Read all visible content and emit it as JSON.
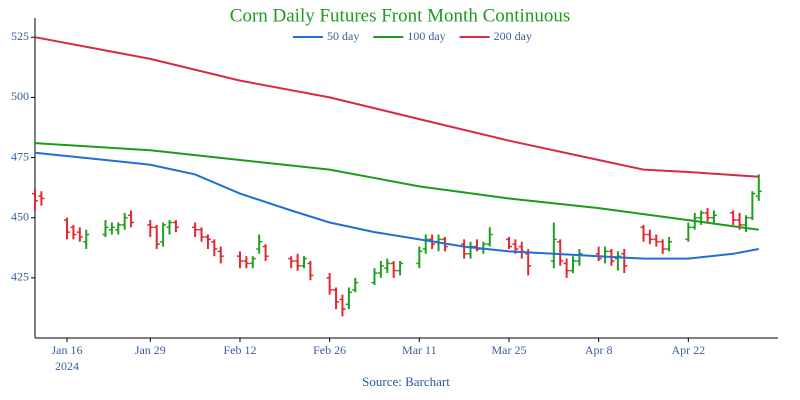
{
  "chart_data": {
    "type": "ohlc",
    "title": "Corn Daily Futures Front Month Continuous",
    "source": "Source: Barchart",
    "legend": "top",
    "xlim": [
      "2024-01-11",
      "2024-05-06"
    ],
    "xticks": [
      {
        "value": "2024-01-16",
        "label": "Jan 16",
        "year": "2024"
      },
      {
        "value": "2024-01-29",
        "label": "Jan 29"
      },
      {
        "value": "2024-02-12",
        "label": "Feb 12"
      },
      {
        "value": "2024-02-26",
        "label": "Feb 26"
      },
      {
        "value": "2024-03-11",
        "label": "Mar 11"
      },
      {
        "value": "2024-03-25",
        "label": "Mar 25"
      },
      {
        "value": "2024-04-08",
        "label": "Apr 8"
      },
      {
        "value": "2024-04-22",
        "label": "Apr 22"
      }
    ],
    "ylim": [
      400,
      533
    ],
    "yticks": [
      425,
      450,
      475,
      500,
      525
    ],
    "up_color": "#1f9e1f",
    "down_color": "#e3262f",
    "ohlc": {
      "x": [
        "2024-01-11",
        "2024-01-12",
        "2024-01-16",
        "2024-01-17",
        "2024-01-18",
        "2024-01-19",
        "2024-01-22",
        "2024-01-23",
        "2024-01-24",
        "2024-01-25",
        "2024-01-26",
        "2024-01-29",
        "2024-01-30",
        "2024-01-31",
        "2024-02-01",
        "2024-02-02",
        "2024-02-05",
        "2024-02-06",
        "2024-02-07",
        "2024-02-08",
        "2024-02-09",
        "2024-02-12",
        "2024-02-13",
        "2024-02-14",
        "2024-02-15",
        "2024-02-16",
        "2024-02-20",
        "2024-02-21",
        "2024-02-22",
        "2024-02-23",
        "2024-02-26",
        "2024-02-27",
        "2024-02-28",
        "2024-02-29",
        "2024-03-01",
        "2024-03-04",
        "2024-03-05",
        "2024-03-06",
        "2024-03-07",
        "2024-03-08",
        "2024-03-11",
        "2024-03-12",
        "2024-03-13",
        "2024-03-14",
        "2024-03-15",
        "2024-03-18",
        "2024-03-19",
        "2024-03-20",
        "2024-03-21",
        "2024-03-22",
        "2024-03-25",
        "2024-03-26",
        "2024-03-27",
        "2024-03-28",
        "2024-04-01",
        "2024-04-02",
        "2024-04-03",
        "2024-04-04",
        "2024-04-05",
        "2024-04-08",
        "2024-04-09",
        "2024-04-10",
        "2024-04-11",
        "2024-04-12",
        "2024-04-15",
        "2024-04-16",
        "2024-04-17",
        "2024-04-18",
        "2024-04-19",
        "2024-04-22",
        "2024-04-23",
        "2024-04-24",
        "2024-04-25",
        "2024-04-26",
        "2024-04-29",
        "2024-04-30",
        "2024-05-01",
        "2024-05-02",
        "2024-05-03"
      ],
      "open": [
        460,
        459,
        449,
        446,
        444,
        440,
        443,
        445,
        445,
        447,
        451,
        447,
        446,
        440,
        446,
        448,
        446,
        445,
        442,
        440,
        436,
        434,
        432,
        431,
        437,
        438,
        433,
        432,
        430,
        431,
        425,
        420,
        416,
        414,
        420,
        423,
        427,
        429,
        431,
        428,
        431,
        437,
        441,
        440,
        441,
        439,
        435,
        438,
        437,
        439,
        441,
        439,
        438,
        435,
        432,
        440,
        431,
        428,
        432,
        435,
        434,
        436,
        433,
        435,
        446,
        443,
        441,
        440,
        437,
        441,
        446,
        450,
        452,
        450,
        452,
        449,
        447,
        450,
        459
      ],
      "high": [
        462,
        461,
        450,
        447,
        446,
        445,
        449,
        448,
        448,
        452,
        453,
        449,
        447,
        448,
        449,
        449,
        448,
        446,
        443,
        441,
        438,
        436,
        434,
        434,
        443,
        439,
        434,
        435,
        434,
        432,
        427,
        421,
        418,
        421,
        425,
        429,
        432,
        433,
        432,
        432,
        438,
        443,
        443,
        443,
        442,
        441,
        440,
        441,
        440,
        446,
        442,
        441,
        440,
        437,
        448,
        441,
        433,
        434,
        437,
        438,
        438,
        437,
        436,
        437,
        447,
        445,
        443,
        441,
        442,
        448,
        452,
        453,
        454,
        453,
        453,
        452,
        451,
        461,
        468
      ],
      "low": [
        453,
        455,
        441,
        441,
        440,
        437,
        442,
        443,
        443,
        445,
        446,
        442,
        437,
        438,
        443,
        444,
        442,
        440,
        437,
        434,
        431,
        429,
        429,
        429,
        435,
        432,
        429,
        428,
        429,
        424,
        418,
        412,
        409,
        412,
        419,
        422,
        425,
        427,
        425,
        426,
        429,
        435,
        437,
        436,
        436,
        433,
        433,
        436,
        435,
        438,
        437,
        435,
        433,
        426,
        429,
        430,
        425,
        427,
        430,
        432,
        431,
        430,
        428,
        427,
        440,
        439,
        438,
        435,
        436,
        440,
        445,
        447,
        448,
        448,
        447,
        445,
        444,
        449,
        457
      ],
      "close": [
        457,
        458,
        444,
        443,
        442,
        443,
        446,
        446,
        447,
        450,
        448,
        446,
        439,
        447,
        448,
        446,
        445,
        442,
        441,
        437,
        434,
        432,
        431,
        433,
        440,
        434,
        432,
        430,
        433,
        426,
        420,
        415,
        412,
        419,
        423,
        427,
        430,
        431,
        428,
        431,
        436,
        441,
        439,
        441,
        438,
        435,
        438,
        437,
        439,
        443,
        438,
        437,
        436,
        430,
        441,
        432,
        428,
        432,
        435,
        433,
        436,
        432,
        434,
        430,
        443,
        441,
        440,
        437,
        440,
        446,
        450,
        452,
        450,
        451,
        449,
        447,
        450,
        460,
        461
      ]
    },
    "series": [
      {
        "name": "50 day",
        "color": "#1f6fd6",
        "x": [
          "2024-01-11",
          "2024-01-22",
          "2024-01-29",
          "2024-02-05",
          "2024-02-12",
          "2024-02-20",
          "2024-02-26",
          "2024-03-04",
          "2024-03-11",
          "2024-03-18",
          "2024-03-25",
          "2024-04-01",
          "2024-04-08",
          "2024-04-15",
          "2024-04-22",
          "2024-04-29",
          "2024-05-03"
        ],
        "values": [
          477,
          474,
          472,
          468,
          460,
          453,
          448,
          444,
          441,
          438,
          436,
          435,
          434,
          433,
          433,
          435,
          437
        ]
      },
      {
        "name": "100 day",
        "color": "#1e9a1e",
        "x": [
          "2024-01-11",
          "2024-01-29",
          "2024-02-12",
          "2024-02-26",
          "2024-03-11",
          "2024-03-25",
          "2024-04-08",
          "2024-04-22",
          "2024-05-03"
        ],
        "values": [
          481,
          478,
          474,
          470,
          463,
          458,
          454,
          449,
          445
        ]
      },
      {
        "name": "200 day",
        "color": "#d62a45",
        "x": [
          "2024-01-11",
          "2024-01-29",
          "2024-02-12",
          "2024-02-26",
          "2024-03-11",
          "2024-03-25",
          "2024-04-08",
          "2024-04-15",
          "2024-04-22",
          "2024-05-03"
        ],
        "values": [
          525,
          516,
          507,
          500,
          491,
          482,
          474,
          470,
          469,
          467
        ]
      }
    ]
  }
}
